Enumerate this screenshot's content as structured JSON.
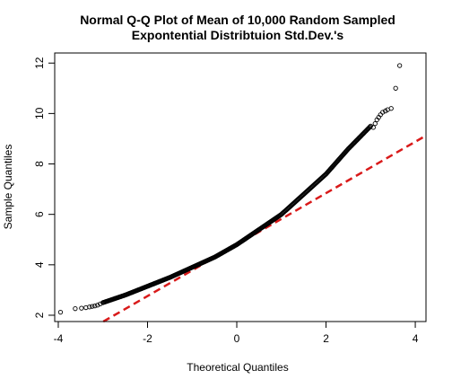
{
  "chart_data": {
    "type": "scatter",
    "title_line1": "Normal Q-Q Plot of Mean of 10,000 Random Sampled",
    "title_line2": "Expontential Distribtuion Std.Dev.'s",
    "xlabel": "Theoretical Quantiles",
    "ylabel": "Sample Quantiles",
    "xlim": [
      -4.08,
      4.24
    ],
    "ylim": [
      1.75,
      12.4
    ],
    "xticks": [
      -4,
      -2,
      0,
      2,
      4
    ],
    "yticks": [
      2,
      4,
      6,
      8,
      10,
      12
    ],
    "xtick_labels": [
      "-4",
      "-2",
      "0",
      "2",
      "4"
    ],
    "ytick_labels": [
      "2",
      "4",
      "6",
      "8",
      "10",
      "12"
    ],
    "points_color": "#000000",
    "line_color": "#d91a1a",
    "reference_line": {
      "intercept": 4.8,
      "slope": 1.02,
      "style": "dashed"
    },
    "curve_knots": {
      "x": [
        -3.0,
        -2.5,
        -2.0,
        -1.5,
        -1.0,
        -0.5,
        0.0,
        0.5,
        1.0,
        1.5,
        2.0,
        2.5,
        3.0
      ],
      "y": [
        2.5,
        2.8,
        3.15,
        3.5,
        3.9,
        4.3,
        4.8,
        5.4,
        6.0,
        6.8,
        7.6,
        8.6,
        9.5
      ]
    },
    "tail_points": {
      "x": [
        -3.95,
        -3.62,
        -3.48,
        -3.38,
        -3.3,
        -3.24,
        -3.18,
        -3.12,
        -3.06,
        3.06,
        3.1,
        3.14,
        3.18,
        3.22,
        3.27,
        3.33,
        3.38,
        3.46,
        3.56,
        3.65
      ],
      "y": [
        2.12,
        2.26,
        2.28,
        2.3,
        2.33,
        2.35,
        2.37,
        2.4,
        2.45,
        9.45,
        9.6,
        9.75,
        9.85,
        9.95,
        10.05,
        10.1,
        10.15,
        10.2,
        11.0,
        11.9
      ]
    }
  }
}
